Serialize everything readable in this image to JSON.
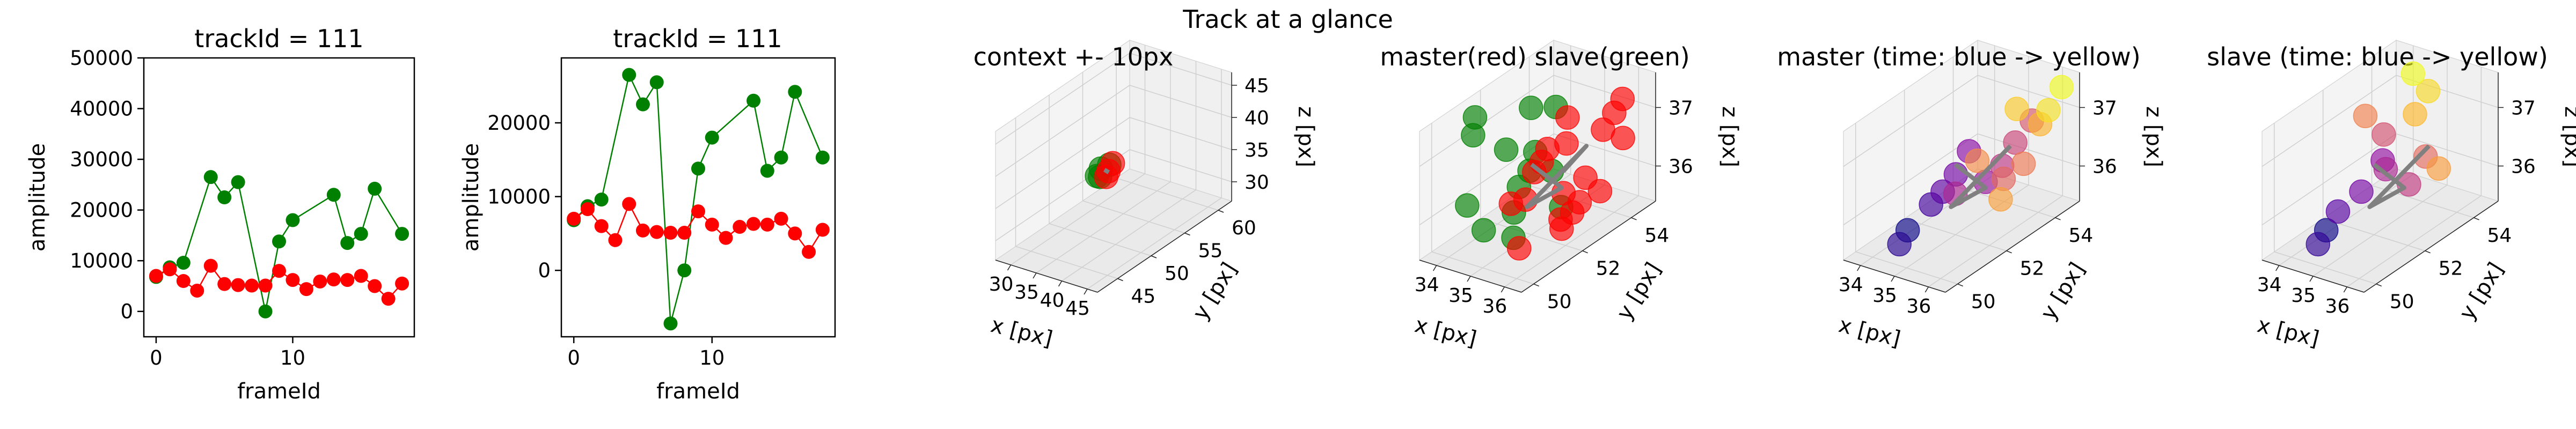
{
  "figure_title": "Track at a glance",
  "chart_data": [
    {
      "type": "line",
      "title": "trackId = 111",
      "xlabel": "frameId",
      "ylabel": "amplitude",
      "xlim": [
        -0.9,
        18.9
      ],
      "ylim": [
        -5000,
        50000
      ],
      "xticks": [
        0,
        10
      ],
      "yticks": [
        0,
        10000,
        20000,
        30000,
        40000,
        50000
      ],
      "grid": false,
      "series": [
        {
          "color": "#008000",
          "x": [
            0,
            1,
            2,
            4,
            5,
            6,
            8,
            9,
            10,
            13,
            14,
            15,
            16,
            18
          ],
          "y": [
            6800,
            8700,
            9600,
            26500,
            22500,
            25500,
            0,
            13800,
            18000,
            23000,
            13500,
            15300,
            24200,
            15300
          ]
        },
        {
          "color": "#ff0000",
          "x": [
            0,
            1,
            2,
            3,
            4,
            5,
            6,
            7,
            8,
            9,
            10,
            11,
            12,
            13,
            14,
            15,
            16,
            17,
            18
          ],
          "y": [
            7000,
            8300,
            6000,
            4100,
            9000,
            5400,
            5200,
            5100,
            5100,
            8000,
            6200,
            4400,
            5900,
            6300,
            6200,
            7000,
            5000,
            2500,
            5500
          ]
        },
        {
          "color": "#008000",
          "x": [
            6.6,
            7
          ],
          "y": [
            -5000,
            -7200
          ]
        }
      ]
    },
    {
      "type": "line",
      "title": "trackId = 111",
      "xlabel": "frameId",
      "ylabel": "amplitude",
      "xlim": [
        -0.9,
        18.9
      ],
      "ylim": [
        -9000,
        28800
      ],
      "xticks": [
        0,
        10
      ],
      "yticks": [
        0,
        10000,
        20000
      ],
      "grid": false,
      "series": [
        {
          "color": "#008000",
          "x": [
            0,
            1,
            2,
            4,
            5,
            6,
            7,
            8,
            9,
            10,
            13,
            14,
            15,
            16,
            18
          ],
          "y": [
            6800,
            8700,
            9600,
            26500,
            22500,
            25500,
            -7200,
            0,
            13800,
            18000,
            23000,
            13500,
            15300,
            24200,
            15300
          ]
        },
        {
          "color": "#ff0000",
          "x": [
            0,
            1,
            2,
            3,
            4,
            5,
            6,
            7,
            8,
            9,
            10,
            11,
            12,
            13,
            14,
            15,
            16,
            17,
            18
          ],
          "y": [
            7000,
            8300,
            6000,
            4100,
            9000,
            5400,
            5200,
            5100,
            5100,
            8000,
            6200,
            4400,
            5900,
            6300,
            6200,
            7000,
            5000,
            2500,
            5500
          ]
        }
      ]
    },
    {
      "type": "scatter",
      "title": "context +- 10px",
      "xlabel": "x [px]",
      "ylabel": "y [px]",
      "zlabel": "z [px]",
      "xticks": [
        30,
        35,
        40,
        45
      ],
      "yticks": [
        45,
        50,
        55,
        60
      ],
      "zticks": [
        30,
        35,
        40,
        45
      ],
      "xlim": [
        27,
        47
      ],
      "ylim": [
        42,
        62
      ],
      "zlim": [
        27,
        47
      ],
      "series": [
        {
          "color": "#008000",
          "points": [
            [
              34.5,
              52,
              36
            ],
            [
              35,
              51.5,
              35.2
            ],
            [
              35.5,
              52.5,
              36.5
            ],
            [
              34.8,
              51.2,
              35.5
            ]
          ]
        },
        {
          "color": "#ff0000",
          "points": [
            [
              36,
              52,
              36
            ],
            [
              36.2,
              51.5,
              35.5
            ],
            [
              35.8,
              52.8,
              36.6
            ]
          ]
        },
        {
          "color": "#808080",
          "points": [
            [
              35.2,
              52,
              36
            ],
            [
              35.8,
              52.2,
              35.6
            ]
          ]
        }
      ]
    },
    {
      "type": "scatter",
      "title": "master(red) slave(green)",
      "xlabel": "x [px]",
      "ylabel": "y [px]",
      "zlabel": "z [px]",
      "xticks": [
        34,
        35,
        36
      ],
      "yticks": [
        50,
        52,
        54
      ],
      "zticks": [
        36,
        37
      ],
      "xlim": [
        33.5,
        36.5
      ],
      "ylim": [
        49.5,
        55
      ],
      "zlim": [
        35.4,
        37.6
      ],
      "series": [
        {
          "color": "#008000",
          "points": [
            [
              34.2,
              50.8,
              37.6
            ],
            [
              34,
              51,
              37.2
            ],
            [
              34.4,
              51.8,
              36.8
            ],
            [
              34.8,
              52.2,
              36.4
            ],
            [
              35.2,
              51,
              36.1
            ],
            [
              34.6,
              50.6,
              35.8
            ],
            [
              35.4,
              51.6,
              37
            ],
            [
              34.2,
              52.6,
              35.9
            ],
            [
              35,
              53,
              37.3
            ],
            [
              34.9,
              51.4,
              35.5
            ],
            [
              35.6,
              52,
              36.6
            ],
            [
              34.4,
              50.2,
              36.3
            ],
            [
              35.3,
              52.8,
              35.7
            ],
            [
              34.7,
              52.4,
              37.4
            ]
          ]
        },
        {
          "color": "#ff0000",
          "points": [
            [
              35.6,
              52.6,
              36.9
            ],
            [
              36.1,
              53.4,
              37
            ],
            [
              36.3,
              52.4,
              36.5
            ],
            [
              35.4,
              51.2,
              36.3
            ],
            [
              36,
              51.8,
              35.9
            ],
            [
              35.8,
              52.2,
              36.2
            ],
            [
              35.2,
              53.2,
              37.1
            ],
            [
              36.4,
              53.8,
              36.8
            ],
            [
              35.5,
              50.8,
              35.6
            ],
            [
              35.9,
              51.4,
              37.2
            ],
            [
              36.2,
              52,
              36
            ],
            [
              35.7,
              53,
              35.8
            ],
            [
              35.3,
              52,
              36.7
            ],
            [
              36,
              54,
              37.1
            ],
            [
              35.4,
              50.6,
              36.4
            ],
            [
              35.8,
              51,
              36.9
            ],
            [
              36.3,
              53,
              36.1
            ],
            [
              35.6,
              52.4,
              35.5
            ],
            [
              36.1,
              54.2,
              37.3
            ]
          ]
        },
        {
          "color": "#808080",
          "points": [
            [
              35,
              52,
              36.6
            ],
            [
              35.6,
              52.4,
              36.2
            ],
            [
              35.3,
              51.4,
              36.1
            ],
            [
              35.9,
              53,
              36.8
            ],
            [
              35.5,
              52.6,
              36.4
            ]
          ]
        }
      ]
    },
    {
      "type": "scatter",
      "title": "master (time: blue -> yellow)",
      "xlabel": "x [px]",
      "ylabel": "y [px]",
      "zlabel": "z [px]",
      "xticks": [
        34,
        35,
        36
      ],
      "yticks": [
        50,
        52,
        54
      ],
      "zticks": [
        36,
        37
      ],
      "xlim": [
        33.5,
        36.5
      ],
      "ylim": [
        49.5,
        55
      ],
      "zlim": [
        35.4,
        37.6
      ],
      "colormap": "plasma",
      "series": [
        {
          "name": "",
          "points": [
            [
              34.6,
              50.6,
              35.8
            ],
            [
              34.5,
              50.4,
              35.6
            ],
            [
              35,
              51,
              36.2
            ],
            [
              35.2,
              51.2,
              36.4
            ],
            [
              35.3,
              51.6,
              36.6
            ],
            [
              35.4,
              52,
              36.9
            ],
            [
              35.6,
              52.4,
              36.3
            ],
            [
              35,
              52,
              36.1
            ],
            [
              35.8,
              52.8,
              36.5
            ],
            [
              35.9,
              53.2,
              36.8
            ],
            [
              36.1,
              53.6,
              37.1
            ],
            [
              35.7,
              53,
              36.2
            ],
            [
              36,
              53.4,
              36.4
            ],
            [
              35.5,
              52.2,
              36.7
            ],
            [
              35.9,
              52.6,
              36
            ],
            [
              36.2,
              53.8,
              37
            ],
            [
              35.8,
              53.4,
              37.3
            ],
            [
              36.3,
              54,
              37.2
            ],
            [
              36.4,
              54.4,
              37.5
            ]
          ]
        },
        {
          "color": "#808080",
          "points": [
            [
              35,
              52,
              36.6
            ],
            [
              35.6,
              52.4,
              36.2
            ],
            [
              35.3,
              51.4,
              36.1
            ],
            [
              35.9,
              53,
              36.8
            ]
          ]
        }
      ]
    },
    {
      "type": "scatter",
      "title": "slave (time: blue -> yellow)",
      "xlabel": "x [px]",
      "ylabel": "y [px]",
      "zlabel": "z [px]",
      "xticks": [
        34,
        35,
        36
      ],
      "yticks": [
        50,
        52,
        54
      ],
      "zticks": [
        36,
        37
      ],
      "xlim": [
        33.5,
        36.5
      ],
      "ylim": [
        49.5,
        55
      ],
      "zlim": [
        35.4,
        37.6
      ],
      "colormap": "plasma",
      "series": [
        {
          "name": "",
          "points": [
            [
              34.6,
              50.6,
              35.8
            ],
            [
              34.5,
              50.4,
              35.6
            ],
            [
              34.8,
              50.8,
              36.1
            ],
            [
              35.2,
              51.2,
              36.4
            ],
            [
              35.4,
              51.8,
              36.8
            ],
            [
              35.2,
              52.2,
              36.5
            ],
            [
              35.6,
              52.6,
              36.2
            ],
            [
              35,
              52.4,
              37
            ],
            [
              35.8,
              53,
              36.6
            ],
            [
              34.6,
              52.2,
              37.3
            ],
            [
              35.9,
              53.4,
              36.3
            ],
            [
              35.2,
              53.4,
              37.1
            ],
            [
              35.3,
              53.8,
              37.4
            ],
            [
              35,
              53.6,
              37.7
            ]
          ]
        },
        {
          "color": "#808080",
          "points": [
            [
              35,
              52,
              36.6
            ],
            [
              35.6,
              52.4,
              36.2
            ],
            [
              35.3,
              51.4,
              36.1
            ],
            [
              35.9,
              53,
              36.8
            ]
          ]
        }
      ]
    }
  ]
}
